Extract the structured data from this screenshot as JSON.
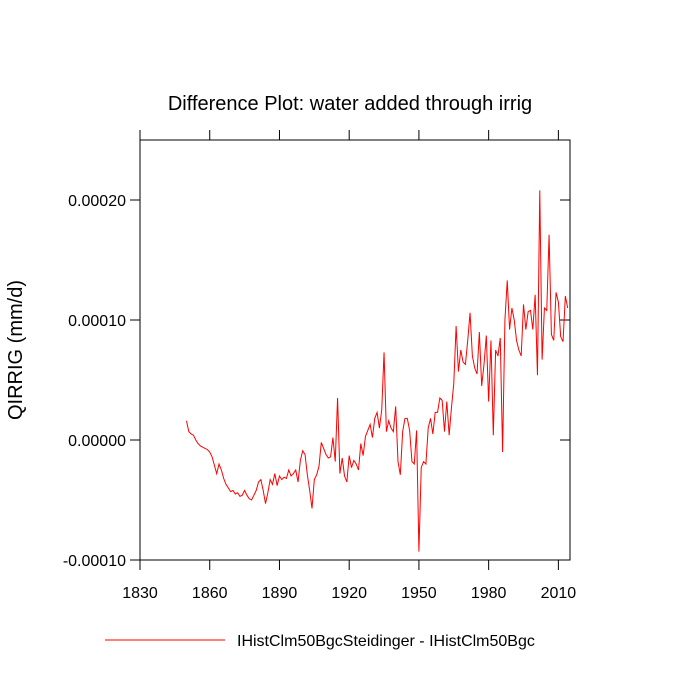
{
  "chart_data": {
    "type": "line",
    "title": "Difference Plot: water added through irrig",
    "y_label": "QIRRIG  (mm/d)",
    "xlim": [
      1830,
      2015
    ],
    "xticks": [
      1830,
      1860,
      1890,
      1920,
      1950,
      1980,
      2010
    ],
    "ylim": [
      -0.0001,
      0.00025
    ],
    "yticks": [
      {
        "value": -0.0001,
        "label": "-0.00010"
      },
      {
        "value": 0,
        "label": "0.00000"
      },
      {
        "value": 0.0001,
        "label": "0.00010"
      },
      {
        "value": 0.0002,
        "label": "0.00020"
      }
    ],
    "x": [
      1850,
      1851,
      1852,
      1853,
      1854,
      1855,
      1856,
      1857,
      1858,
      1859,
      1860,
      1861,
      1862,
      1863,
      1864,
      1865,
      1866,
      1867,
      1868,
      1869,
      1870,
      1871,
      1872,
      1873,
      1874,
      1875,
      1876,
      1877,
      1878,
      1879,
      1880,
      1881,
      1882,
      1883,
      1884,
      1885,
      1886,
      1887,
      1888,
      1889,
      1890,
      1891,
      1892,
      1893,
      1894,
      1895,
      1896,
      1897,
      1898,
      1899,
      1900,
      1901,
      1902,
      1903,
      1904,
      1905,
      1906,
      1907,
      1908,
      1909,
      1910,
      1911,
      1912,
      1913,
      1914,
      1915,
      1916,
      1917,
      1918,
      1919,
      1920,
      1921,
      1922,
      1923,
      1924,
      1925,
      1926,
      1927,
      1928,
      1929,
      1930,
      1931,
      1932,
      1933,
      1934,
      1935,
      1936,
      1937,
      1938,
      1939,
      1940,
      1941,
      1942,
      1943,
      1944,
      1945,
      1946,
      1947,
      1948,
      1949,
      1950,
      1951,
      1952,
      1953,
      1954,
      1955,
      1956,
      1957,
      1958,
      1959,
      1960,
      1961,
      1962,
      1963,
      1964,
      1965,
      1966,
      1967,
      1968,
      1969,
      1970,
      1971,
      1972,
      1973,
      1974,
      1975,
      1976,
      1977,
      1978,
      1979,
      1980,
      1981,
      1982,
      1983,
      1984,
      1985,
      1986,
      1987,
      1988,
      1989,
      1990,
      1991,
      1992,
      1993,
      1994,
      1995,
      1996,
      1997,
      1998,
      1999,
      2000,
      2001,
      2002,
      2003,
      2004,
      2005,
      2006,
      2007,
      2008,
      2009,
      2010,
      2011,
      2012,
      2013,
      2014
    ],
    "series": [
      {
        "name": "IHistClm50BgcSteidinger - IHistClm50Bgc",
        "color": "#ff0000",
        "values": [
          1.6e-05,
          7e-06,
          5e-06,
          4e-06,
          0,
          -3e-06,
          -5e-06,
          -6e-06,
          -7e-06,
          -8e-06,
          -1e-05,
          -1.4e-05,
          -2.1e-05,
          -2.8e-05,
          -2e-05,
          -2.5e-05,
          -3.2e-05,
          -3.7e-05,
          -4e-05,
          -4.3e-05,
          -4.2e-05,
          -4.5e-05,
          -4.4e-05,
          -4.7e-05,
          -4.6e-05,
          -4.2e-05,
          -4.6e-05,
          -4.9e-05,
          -5e-05,
          -4.6e-05,
          -4.2e-05,
          -3.5e-05,
          -3.3e-05,
          -4.2e-05,
          -5.3e-05,
          -4.4e-05,
          -3.3e-05,
          -3.7e-05,
          -2.8e-05,
          -3.8e-05,
          -3e-05,
          -3.3e-05,
          -3.1e-05,
          -3.2e-05,
          -2.5e-05,
          -3e-05,
          -2.8e-05,
          -2.5e-05,
          -3.5e-05,
          -1.7e-05,
          -9e-06,
          -1.2e-05,
          -2.9e-05,
          -4.2e-05,
          -5.7e-05,
          -3.3e-05,
          -2.9e-05,
          -2.2e-05,
          -2e-06,
          -7e-06,
          -1.2e-05,
          -1.5e-05,
          -1.4e-05,
          2e-06,
          -1.8e-05,
          3.5e-05,
          -2.8e-05,
          -1.5e-05,
          -3e-05,
          -3.5e-05,
          -1.3e-05,
          -2.3e-05,
          -1.7e-05,
          -2e-05,
          -2.5e-05,
          -3e-06,
          -1.3e-05,
          3e-06,
          8e-06,
          1.3e-05,
          2e-06,
          1.8e-05,
          2.3e-05,
          1e-05,
          2.5e-05,
          7.3e-05,
          7e-06,
          1.6e-05,
          1e-05,
          7e-06,
          2.8e-05,
          -1.8e-05,
          -2.9e-05,
          7e-06,
          1.8e-05,
          1.8e-05,
          8e-06,
          -1.8e-05,
          -2e-05,
          8e-06,
          -9.3e-05,
          -2.3e-05,
          -1.8e-05,
          -2e-05,
          1e-05,
          1.8e-05,
          5e-06,
          2.3e-05,
          2.3e-05,
          3.5e-05,
          3.3e-05,
          7e-06,
          3.2e-05,
          4e-06,
          2.7e-05,
          4.7e-05,
          9.5e-05,
          5.7e-05,
          7.5e-05,
          6.5e-05,
          6.3e-05,
          8.3e-05,
          0.000106,
          7e-05,
          6e-05,
          5.5e-05,
          9e-05,
          4.5e-05,
          6.3e-05,
          8.7e-05,
          3.2e-05,
          8.3e-05,
          4e-06,
          7.5e-05,
          7e-05,
          8.5e-05,
          -1e-05,
          0.0001,
          0.000133,
          9.2e-05,
          0.00011,
          0.0001,
          8.3e-05,
          7.5e-05,
          7e-05,
          0.000113,
          9.2e-05,
          0.000107,
          0.000108,
          9.2e-05,
          0.000121,
          5.4e-05,
          0.000208,
          6.7e-05,
          0.00011,
          0.000108,
          0.000171,
          8.8e-05,
          8.3e-05,
          0.000123,
          0.000115,
          8.6e-05,
          8.2e-05,
          0.00012,
          0.00011
        ]
      }
    ]
  }
}
